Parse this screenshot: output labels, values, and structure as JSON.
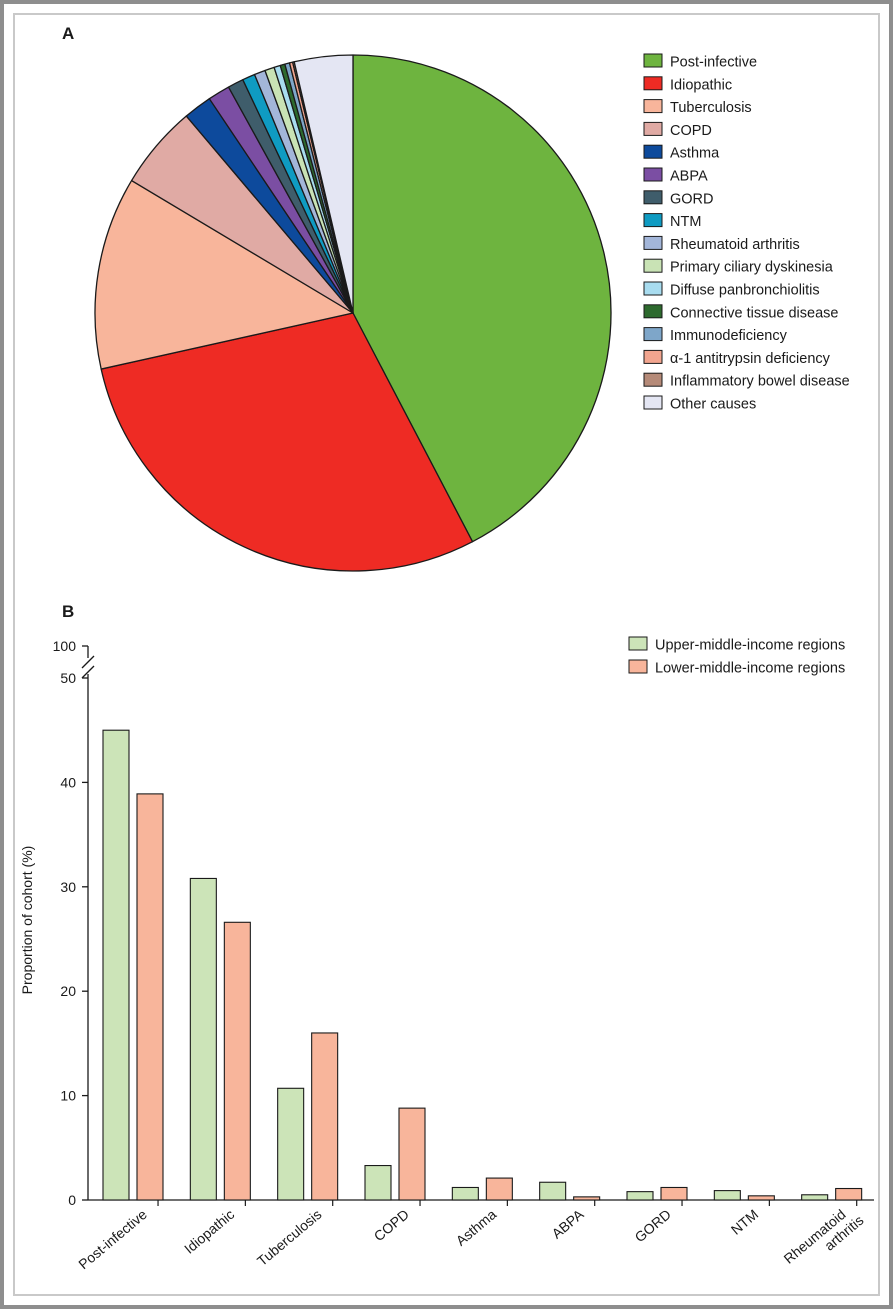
{
  "chart_data": [
    {
      "panel": "A",
      "type": "pie",
      "categories": [
        "Post-infective",
        "Idiopathic",
        "Tuberculosis",
        "COPD",
        "Asthma",
        "ABPA",
        "GORD",
        "NTM",
        "Rheumatoid arthritis",
        "Primary ciliary dyskinesia",
        "Diffuse panbronchiolitis",
        "Connective tissue disease",
        "Immunodeficiency",
        "α-1 antitrypsin deficiency",
        "Inflammatory bowel disease",
        "Other causes"
      ],
      "values": [
        42.8,
        29.5,
        12.2,
        5.3,
        1.8,
        1.4,
        1.0,
        0.8,
        0.7,
        0.6,
        0.4,
        0.3,
        0.3,
        0.2,
        0.1,
        3.7
      ],
      "colors": [
        "#6eb43f",
        "#ee2b24",
        "#f8b59b",
        "#e0aaa4",
        "#0d4a9c",
        "#7b4ea3",
        "#3f5d6b",
        "#0f9bc2",
        "#a3b6d9",
        "#c9e3b5",
        "#a8dcef",
        "#2d6a2e",
        "#7ea6c9",
        "#f2a58f",
        "#b58a78",
        "#e4e6f3"
      ],
      "legend_position": "right"
    },
    {
      "panel": "B",
      "type": "bar",
      "categories": [
        "Post-infective",
        "Idiopathic",
        "Tuberculosis",
        "COPD",
        "Asthma",
        "ABPA",
        "GORD",
        "NTM",
        "Rheumatoid arthritis"
      ],
      "category_lines": [
        [
          "Post-infective"
        ],
        [
          "Idiopathic"
        ],
        [
          "Tuberculosis"
        ],
        [
          "COPD"
        ],
        [
          "Asthma"
        ],
        [
          "ABPA"
        ],
        [
          "GORD"
        ],
        [
          "NTM"
        ],
        [
          "Rheumatoid",
          "arthritis"
        ]
      ],
      "series": [
        {
          "name": "Upper-middle-income regions",
          "color": "#cce4b8",
          "values": [
            45.0,
            30.8,
            10.7,
            3.3,
            1.2,
            1.7,
            0.8,
            0.9,
            0.5
          ]
        },
        {
          "name": "Lower-middle-income regions",
          "color": "#f8b59b",
          "values": [
            38.9,
            26.6,
            16.0,
            8.8,
            2.1,
            0.3,
            1.2,
            0.4,
            1.1
          ]
        }
      ],
      "ylabel": "Proportion of cohort (%)",
      "yticks": [
        "0",
        "10",
        "20",
        "30",
        "40",
        "50"
      ],
      "ybreak_tick": "100",
      "ylim": [
        0,
        50
      ],
      "legend_position": "top-right"
    }
  ]
}
